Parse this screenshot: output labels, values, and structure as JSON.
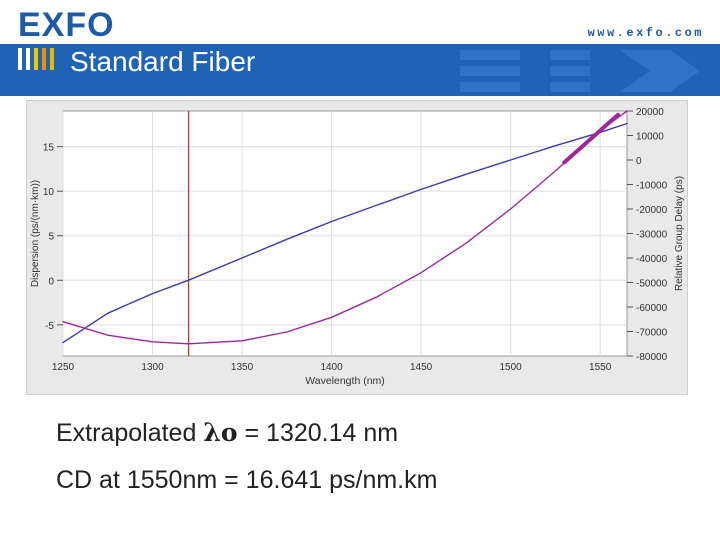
{
  "header": {
    "logo": "EXFO",
    "url": "www.exfo.com",
    "title": "Standard Fiber"
  },
  "captions": {
    "line1_prefix": "Extrapolated ",
    "line1_symbol": "λo",
    "line1_suffix": " = 1320.14 nm",
    "line2": "CD at 1550nm = 16.641 ps/nm.km"
  },
  "colors": {
    "brand_blue": "#1f63b5",
    "dispersion_line": "#3a3ab0",
    "delay_line": "#9a2a9a",
    "marker_line": "#c0392b"
  },
  "chart_data": {
    "type": "line",
    "xlabel": "Wavelength (nm)",
    "ylabel": "Dispersion (ps/(nm·km))",
    "y2label": "Relative Group Delay (ps)",
    "xlim": [
      1250,
      1565
    ],
    "ylim": [
      -8.5,
      19
    ],
    "y2lim": [
      -80000,
      20000
    ],
    "xticks": [
      1250,
      1300,
      1350,
      1400,
      1450,
      1500,
      1550
    ],
    "yticks": [
      -5,
      0,
      5,
      10,
      15
    ],
    "y2ticks": [
      -80000,
      -70000,
      -60000,
      -50000,
      -40000,
      -30000,
      -20000,
      -10000,
      0,
      10000,
      20000
    ],
    "xtick_labels": [
      "1250",
      "1300",
      "1350",
      "1400",
      "1450",
      "1500",
      "1550"
    ],
    "ytick_labels": [
      "-5",
      "0",
      "5",
      "10",
      "15"
    ],
    "y2tick_labels": [
      "-80000",
      "-70000",
      "-60000",
      "-50000",
      "-40000",
      "-30000",
      "-20000",
      "-10000",
      "0",
      "10000",
      "20000"
    ],
    "grid": true,
    "marker_x": 1320.14,
    "series": [
      {
        "axis": "left",
        "x": [
          1250,
          1275,
          1300,
          1320,
          1350,
          1375,
          1400,
          1425,
          1450,
          1475,
          1500,
          1525,
          1550,
          1565
        ],
        "values": [
          -7.0,
          -3.7,
          -1.5,
          0.0,
          2.5,
          4.6,
          6.6,
          8.4,
          10.2,
          11.9,
          13.5,
          15.1,
          16.6,
          17.6
        ]
      },
      {
        "axis": "right",
        "x": [
          1250,
          1275,
          1300,
          1320,
          1350,
          1375,
          1400,
          1425,
          1450,
          1475,
          1500,
          1525,
          1550,
          1565
        ],
        "values": [
          -66000,
          -71500,
          -74200,
          -75000,
          -73800,
          -70200,
          -64200,
          -56000,
          -46000,
          -34000,
          -20000,
          -4500,
          12000,
          20000
        ]
      },
      {
        "axis": "right",
        "x": [
          1530,
          1540,
          1550,
          1560
        ],
        "values": [
          -1000,
          5500,
          12000,
          18500
        ]
      }
    ]
  }
}
